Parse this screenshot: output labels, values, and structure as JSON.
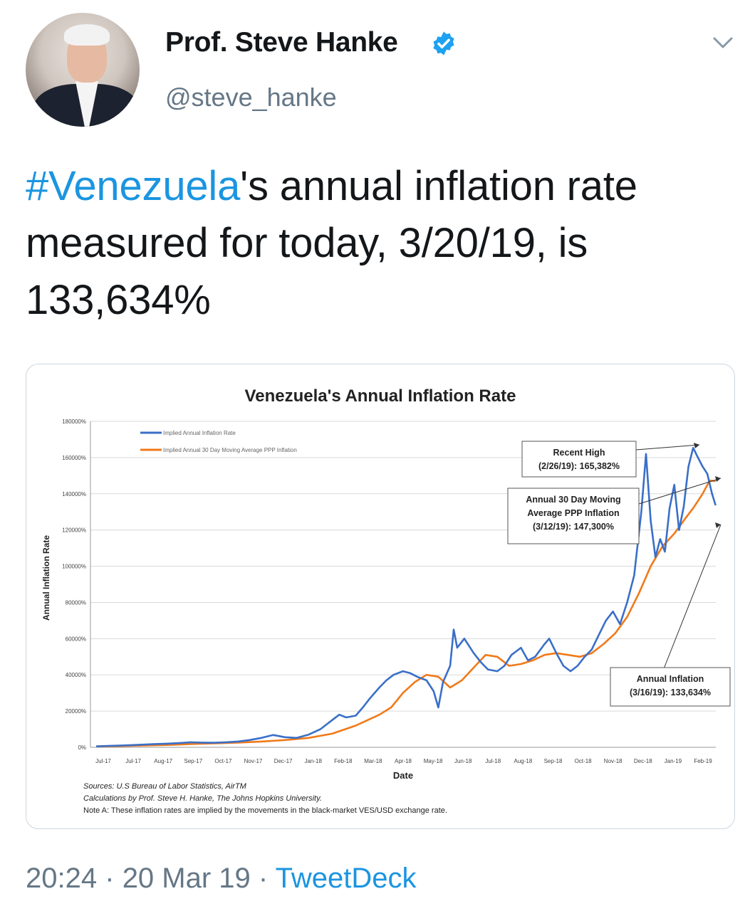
{
  "tweet": {
    "author_name": "Prof. Steve Hanke",
    "handle": "@steve_hanke",
    "text_hashtag": "#Venezuela",
    "text_rest": "'s annual inflation rate measured for today, 3/20/19, is 133,634%",
    "time": "20:24",
    "date": "20 Mar 19",
    "source": "TweetDeck",
    "separator": "·",
    "icons": {
      "verified": "verified-badge-icon",
      "menu": "chevron-down-icon"
    },
    "colors": {
      "link": "#1b95e0",
      "muted": "#657786"
    }
  },
  "chart_data": {
    "type": "line",
    "title": "Venezuela's Annual Inflation Rate",
    "xlabel": "Date",
    "ylabel": "Annual Inflation Rate",
    "ylim": [
      0,
      180000
    ],
    "yticks": [
      "0%",
      "20000%",
      "40000%",
      "60000%",
      "80000%",
      "100000%",
      "120000%",
      "140000%",
      "160000%",
      "180000%"
    ],
    "categories": [
      "Jul-17",
      "Jul-17",
      "Aug-17",
      "Sep-17",
      "Oct-17",
      "Nov-17",
      "Dec-17",
      "Jan-18",
      "Feb-18",
      "Mar-18",
      "Apr-18",
      "May-18",
      "Jun-18",
      "Jul-18",
      "Aug-18",
      "Sep-18",
      "Oct-18",
      "Nov-18",
      "Dec-18",
      "Jan-19",
      "Feb-19"
    ],
    "grid": true,
    "legend_position": "top-left",
    "series": [
      {
        "name": "Implied Annual Inflation Rate",
        "color": "#3a6fc8",
        "values": [
          [
            0.0,
            500
          ],
          [
            0.5,
            800
          ],
          [
            1.0,
            1000
          ],
          [
            1.5,
            1200
          ],
          [
            2.0,
            1500
          ],
          [
            2.5,
            1800
          ],
          [
            3.0,
            2000
          ],
          [
            3.5,
            2300
          ],
          [
            4.0,
            2800
          ],
          [
            4.5,
            2600
          ],
          [
            5.0,
            2500
          ],
          [
            5.5,
            2800
          ],
          [
            6.0,
            3200
          ],
          [
            6.5,
            4000
          ],
          [
            7.0,
            5200
          ],
          [
            7.5,
            6800
          ],
          [
            8.0,
            5600
          ],
          [
            8.5,
            5200
          ],
          [
            9.0,
            7000
          ],
          [
            9.5,
            10000
          ],
          [
            10.0,
            15000
          ],
          [
            10.3,
            18000
          ],
          [
            10.6,
            16500
          ],
          [
            11.0,
            17500
          ],
          [
            11.3,
            22000
          ],
          [
            11.6,
            27000
          ],
          [
            12.0,
            33000
          ],
          [
            12.3,
            37000
          ],
          [
            12.6,
            40000
          ],
          [
            13.0,
            42000
          ],
          [
            13.3,
            41000
          ],
          [
            13.6,
            39000
          ],
          [
            14.0,
            37000
          ],
          [
            14.3,
            31000
          ],
          [
            14.5,
            22000
          ],
          [
            14.7,
            36000
          ],
          [
            15.0,
            45000
          ],
          [
            15.15,
            65000
          ],
          [
            15.3,
            55000
          ],
          [
            15.6,
            60000
          ],
          [
            16.0,
            52000
          ],
          [
            16.3,
            47000
          ],
          [
            16.6,
            43000
          ],
          [
            17.0,
            42000
          ],
          [
            17.3,
            45000
          ],
          [
            17.6,
            51000
          ],
          [
            18.0,
            55000
          ],
          [
            18.3,
            48000
          ],
          [
            18.6,
            50000
          ],
          [
            19.0,
            57000
          ],
          [
            19.2,
            60000
          ],
          [
            19.5,
            52000
          ],
          [
            19.8,
            45000
          ],
          [
            20.1,
            42000
          ],
          [
            20.4,
            45000
          ],
          [
            20.7,
            50000
          ],
          [
            21.0,
            54000
          ],
          [
            21.3,
            62000
          ],
          [
            21.6,
            70000
          ],
          [
            21.9,
            75000
          ],
          [
            22.2,
            68000
          ],
          [
            22.5,
            80000
          ],
          [
            22.8,
            95000
          ],
          [
            23.1,
            130000
          ],
          [
            23.3,
            162000
          ],
          [
            23.5,
            125000
          ],
          [
            23.7,
            105000
          ],
          [
            23.9,
            115000
          ],
          [
            24.1,
            108000
          ],
          [
            24.3,
            132000
          ],
          [
            24.5,
            145000
          ],
          [
            24.7,
            120000
          ],
          [
            24.9,
            133000
          ],
          [
            25.1,
            155000
          ],
          [
            25.3,
            165382
          ],
          [
            25.5,
            160000
          ],
          [
            25.7,
            155000
          ],
          [
            25.9,
            151000
          ],
          [
            26.1,
            140000
          ],
          [
            26.25,
            133634
          ]
        ]
      },
      {
        "name": "Implied Annual 30 Day Moving Average PPP Inflation",
        "color": "#f07a1a",
        "values": [
          [
            0.0,
            500
          ],
          [
            1.0,
            700
          ],
          [
            2.0,
            1000
          ],
          [
            3.0,
            1300
          ],
          [
            4.0,
            1800
          ],
          [
            5.0,
            2200
          ],
          [
            6.0,
            2600
          ],
          [
            7.0,
            3200
          ],
          [
            8.0,
            4000
          ],
          [
            9.0,
            5200
          ],
          [
            10.0,
            7500
          ],
          [
            11.0,
            12000
          ],
          [
            12.0,
            18000
          ],
          [
            12.5,
            22000
          ],
          [
            13.0,
            30000
          ],
          [
            13.5,
            36000
          ],
          [
            14.0,
            40000
          ],
          [
            14.5,
            39000
          ],
          [
            15.0,
            33000
          ],
          [
            15.5,
            37000
          ],
          [
            16.0,
            44000
          ],
          [
            16.5,
            51000
          ],
          [
            17.0,
            50000
          ],
          [
            17.5,
            45000
          ],
          [
            18.0,
            46000
          ],
          [
            18.5,
            48000
          ],
          [
            19.0,
            51000
          ],
          [
            19.5,
            52000
          ],
          [
            20.0,
            51000
          ],
          [
            20.5,
            50000
          ],
          [
            21.0,
            52000
          ],
          [
            21.5,
            57000
          ],
          [
            22.0,
            63000
          ],
          [
            22.5,
            72000
          ],
          [
            23.0,
            85000
          ],
          [
            23.5,
            100000
          ],
          [
            24.0,
            111000
          ],
          [
            24.5,
            118000
          ],
          [
            25.0,
            127000
          ],
          [
            25.3,
            132000
          ],
          [
            25.7,
            140000
          ],
          [
            26.0,
            147300
          ],
          [
            26.25,
            147000
          ]
        ]
      }
    ],
    "annotations": [
      {
        "id": "recent-high",
        "lines": [
          "Recent High",
          "(2/26/19): 165,382%"
        ],
        "x": 25.3,
        "y": 165382
      },
      {
        "id": "moving-average",
        "lines": [
          "Annual 30 Day Moving",
          "Average PPP Inflation",
          "(3/12/19): 147,300%"
        ],
        "x": 26.0,
        "y": 147300
      },
      {
        "id": "annual-inflation",
        "lines": [
          "Annual Inflation",
          "(3/16/19): 133,634%"
        ],
        "x": 26.25,
        "y": 133634
      }
    ],
    "notes": [
      "Sources: U.S Bureau of Labor Statistics, AirTM",
      "Calculations by Prof. Steve H. Hanke, The Johns Hopkins University.",
      "Note A: These inflation rates are implied by the movements in the black-market VES/USD exchange rate."
    ]
  }
}
